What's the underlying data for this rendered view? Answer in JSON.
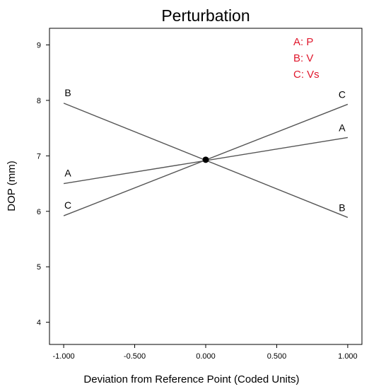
{
  "chart_data": {
    "type": "line",
    "title": "Perturbation",
    "xlabel": "Deviation from Reference Point (Coded Units)",
    "ylabel": "DOP (mm)",
    "xlim": [
      -1.1,
      1.1
    ],
    "ylim": [
      3.6,
      9.3
    ],
    "x_ticks": [
      -1.0,
      -0.5,
      0.0,
      0.5,
      1.0
    ],
    "x_tick_labels": [
      "-1.000",
      "-0.500",
      "0.000",
      "0.500",
      "1.000"
    ],
    "y_ticks": [
      4,
      5,
      6,
      7,
      8,
      9
    ],
    "y_tick_labels": [
      "4",
      "5",
      "6",
      "7",
      "8",
      "9"
    ],
    "grid": false,
    "center_point": {
      "x": 0.0,
      "y": 6.93
    },
    "series": [
      {
        "name": "A",
        "x": [
          -1.0,
          1.0
        ],
        "values": [
          6.5,
          7.33
        ]
      },
      {
        "name": "B",
        "x": [
          -1.0,
          1.0
        ],
        "values": [
          7.95,
          5.89
        ]
      },
      {
        "name": "C",
        "x": [
          -1.0,
          1.0
        ],
        "values": [
          5.92,
          7.93
        ]
      }
    ],
    "legend": {
      "placement": "top-right",
      "color": "#e0182d",
      "entries": [
        "A: P",
        "B: V",
        "C: Vs"
      ]
    },
    "line_color": "#555555"
  }
}
